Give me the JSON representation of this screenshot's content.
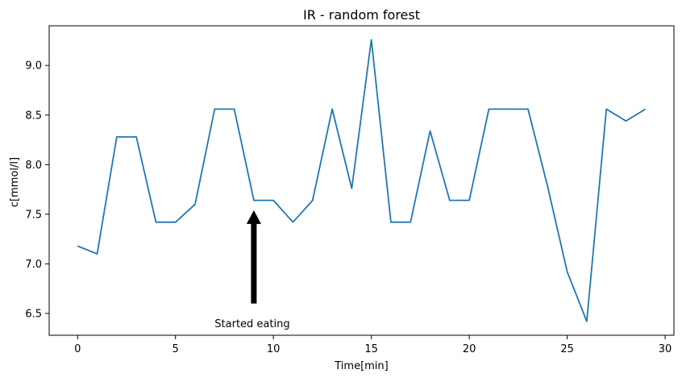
{
  "chart_data": {
    "type": "line",
    "title": "IR - random forest",
    "xlabel": "Time[min]",
    "ylabel": "c[mmol/l]",
    "xlim": [
      -1.45,
      30.45
    ],
    "ylim": [
      6.28,
      9.4
    ],
    "xticks": [
      0,
      5,
      10,
      15,
      20,
      25,
      30
    ],
    "xtick_labels": [
      "0",
      "5",
      "10",
      "15",
      "20",
      "25",
      "30"
    ],
    "yticks": [
      6.5,
      7.0,
      7.5,
      8.0,
      8.5,
      9.0
    ],
    "ytick_labels": [
      "6.5",
      "7.0",
      "7.5",
      "8.0",
      "8.5",
      "9.0"
    ],
    "grid": false,
    "series": [
      {
        "x": [
          0,
          1,
          2,
          3,
          4,
          5,
          6,
          7,
          8,
          9,
          10,
          11,
          12,
          13,
          14,
          15,
          16,
          17,
          18,
          19,
          20,
          21,
          22,
          23,
          24,
          25,
          26,
          27,
          28,
          29
        ],
        "values": [
          7.18,
          7.1,
          8.28,
          8.28,
          7.42,
          7.42,
          7.6,
          8.56,
          8.56,
          7.64,
          7.64,
          7.42,
          7.64,
          8.56,
          7.76,
          9.26,
          7.42,
          7.42,
          8.34,
          7.64,
          7.64,
          8.56,
          8.56,
          8.56,
          7.78,
          6.92,
          6.42,
          8.56,
          8.44,
          8.56
        ],
        "color": "#1f77b4"
      }
    ],
    "annotations": [
      {
        "text": "Started eating",
        "text_x": 7,
        "text_y": 6.36,
        "arrow_x": 9,
        "arrow_tail_y": 6.6,
        "arrow_head_y": 7.54,
        "color": "#000000"
      }
    ]
  }
}
